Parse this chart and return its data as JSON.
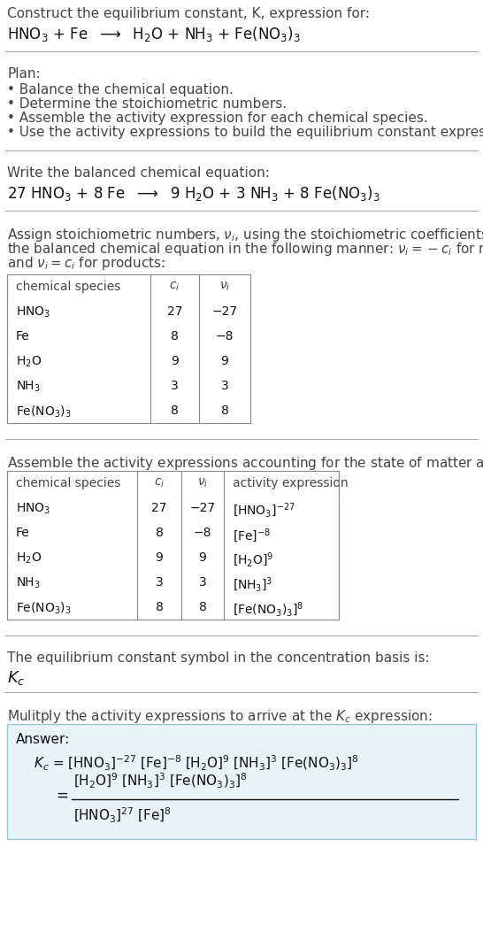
{
  "title_line1": "Construct the equilibrium constant, K, expression for:",
  "title_line2_math": "HNO$_3$ + Fe  $\\longrightarrow$  H$_2$O + NH$_3$ + Fe(NO$_3$)$_3$",
  "plan_header": "Plan:",
  "plan_items": [
    "• Balance the chemical equation.",
    "• Determine the stoichiometric numbers.",
    "• Assemble the activity expression for each chemical species.",
    "• Use the activity expressions to build the equilibrium constant expression."
  ],
  "balanced_header": "Write the balanced chemical equation:",
  "balanced_eq": "27 HNO$_3$ + 8 Fe  $\\longrightarrow$  9 H$_2$O + 3 NH$_3$ + 8 Fe(NO$_3$)$_3$",
  "stoich_intro_lines": [
    "Assign stoichiometric numbers, $\\nu_i$, using the stoichiometric coefficients, $c_i$, from",
    "the balanced chemical equation in the following manner: $\\nu_i = -c_i$ for reactants",
    "and $\\nu_i = c_i$ for products:"
  ],
  "table1_headers": [
    "chemical species",
    "$c_i$",
    "$\\nu_i$"
  ],
  "table1_rows": [
    [
      "HNO$_3$",
      "27",
      "−27"
    ],
    [
      "Fe",
      "8",
      "−8"
    ],
    [
      "H$_2$O",
      "9",
      "9"
    ],
    [
      "NH$_3$",
      "3",
      "3"
    ],
    [
      "Fe(NO$_3$)$_3$",
      "8",
      "8"
    ]
  ],
  "activity_intro": "Assemble the activity expressions accounting for the state of matter and $\\nu_i$:",
  "table2_headers": [
    "chemical species",
    "$c_i$",
    "$\\nu_i$",
    "activity expression"
  ],
  "table2_rows": [
    [
      "HNO$_3$",
      "27",
      "−27",
      "[HNO$_3$]$^{-27}$"
    ],
    [
      "Fe",
      "8",
      "−8",
      "[Fe]$^{-8}$"
    ],
    [
      "H$_2$O",
      "9",
      "9",
      "[H$_2$O]$^9$"
    ],
    [
      "NH$_3$",
      "3",
      "3",
      "[NH$_3$]$^3$"
    ],
    [
      "Fe(NO$_3$)$_3$",
      "8",
      "8",
      "[Fe(NO$_3$)$_3$]$^8$"
    ]
  ],
  "kc_intro": "The equilibrium constant symbol in the concentration basis is:",
  "kc_symbol": "$K_c$",
  "multiply_intro": "Mulitply the activity expressions to arrive at the $K_c$ expression:",
  "answer_label": "Answer:",
  "answer_line1": "$K_c$ = [HNO$_3$]$^{-27}$ [Fe]$^{-8}$ [H$_2$O]$^9$ [NH$_3$]$^3$ [Fe(NO$_3$)$_3$]$^8$",
  "answer_line2_num": "[H$_2$O]$^9$ [NH$_3$]$^3$ [Fe(NO$_3$)$_3$]$^8$",
  "answer_line2_den": "[HNO$_3$]$^{27}$ [Fe]$^8$",
  "bg_color": "#ffffff",
  "text_color": "#111111",
  "gray_text": "#444444",
  "table_line_color": "#888888",
  "inner_line_color": "#bbbbbb",
  "sep_color": "#aaaaaa",
  "answer_bg": "#e6f3f8",
  "answer_border": "#99c4d4",
  "font_size": 11,
  "small_font": 10
}
